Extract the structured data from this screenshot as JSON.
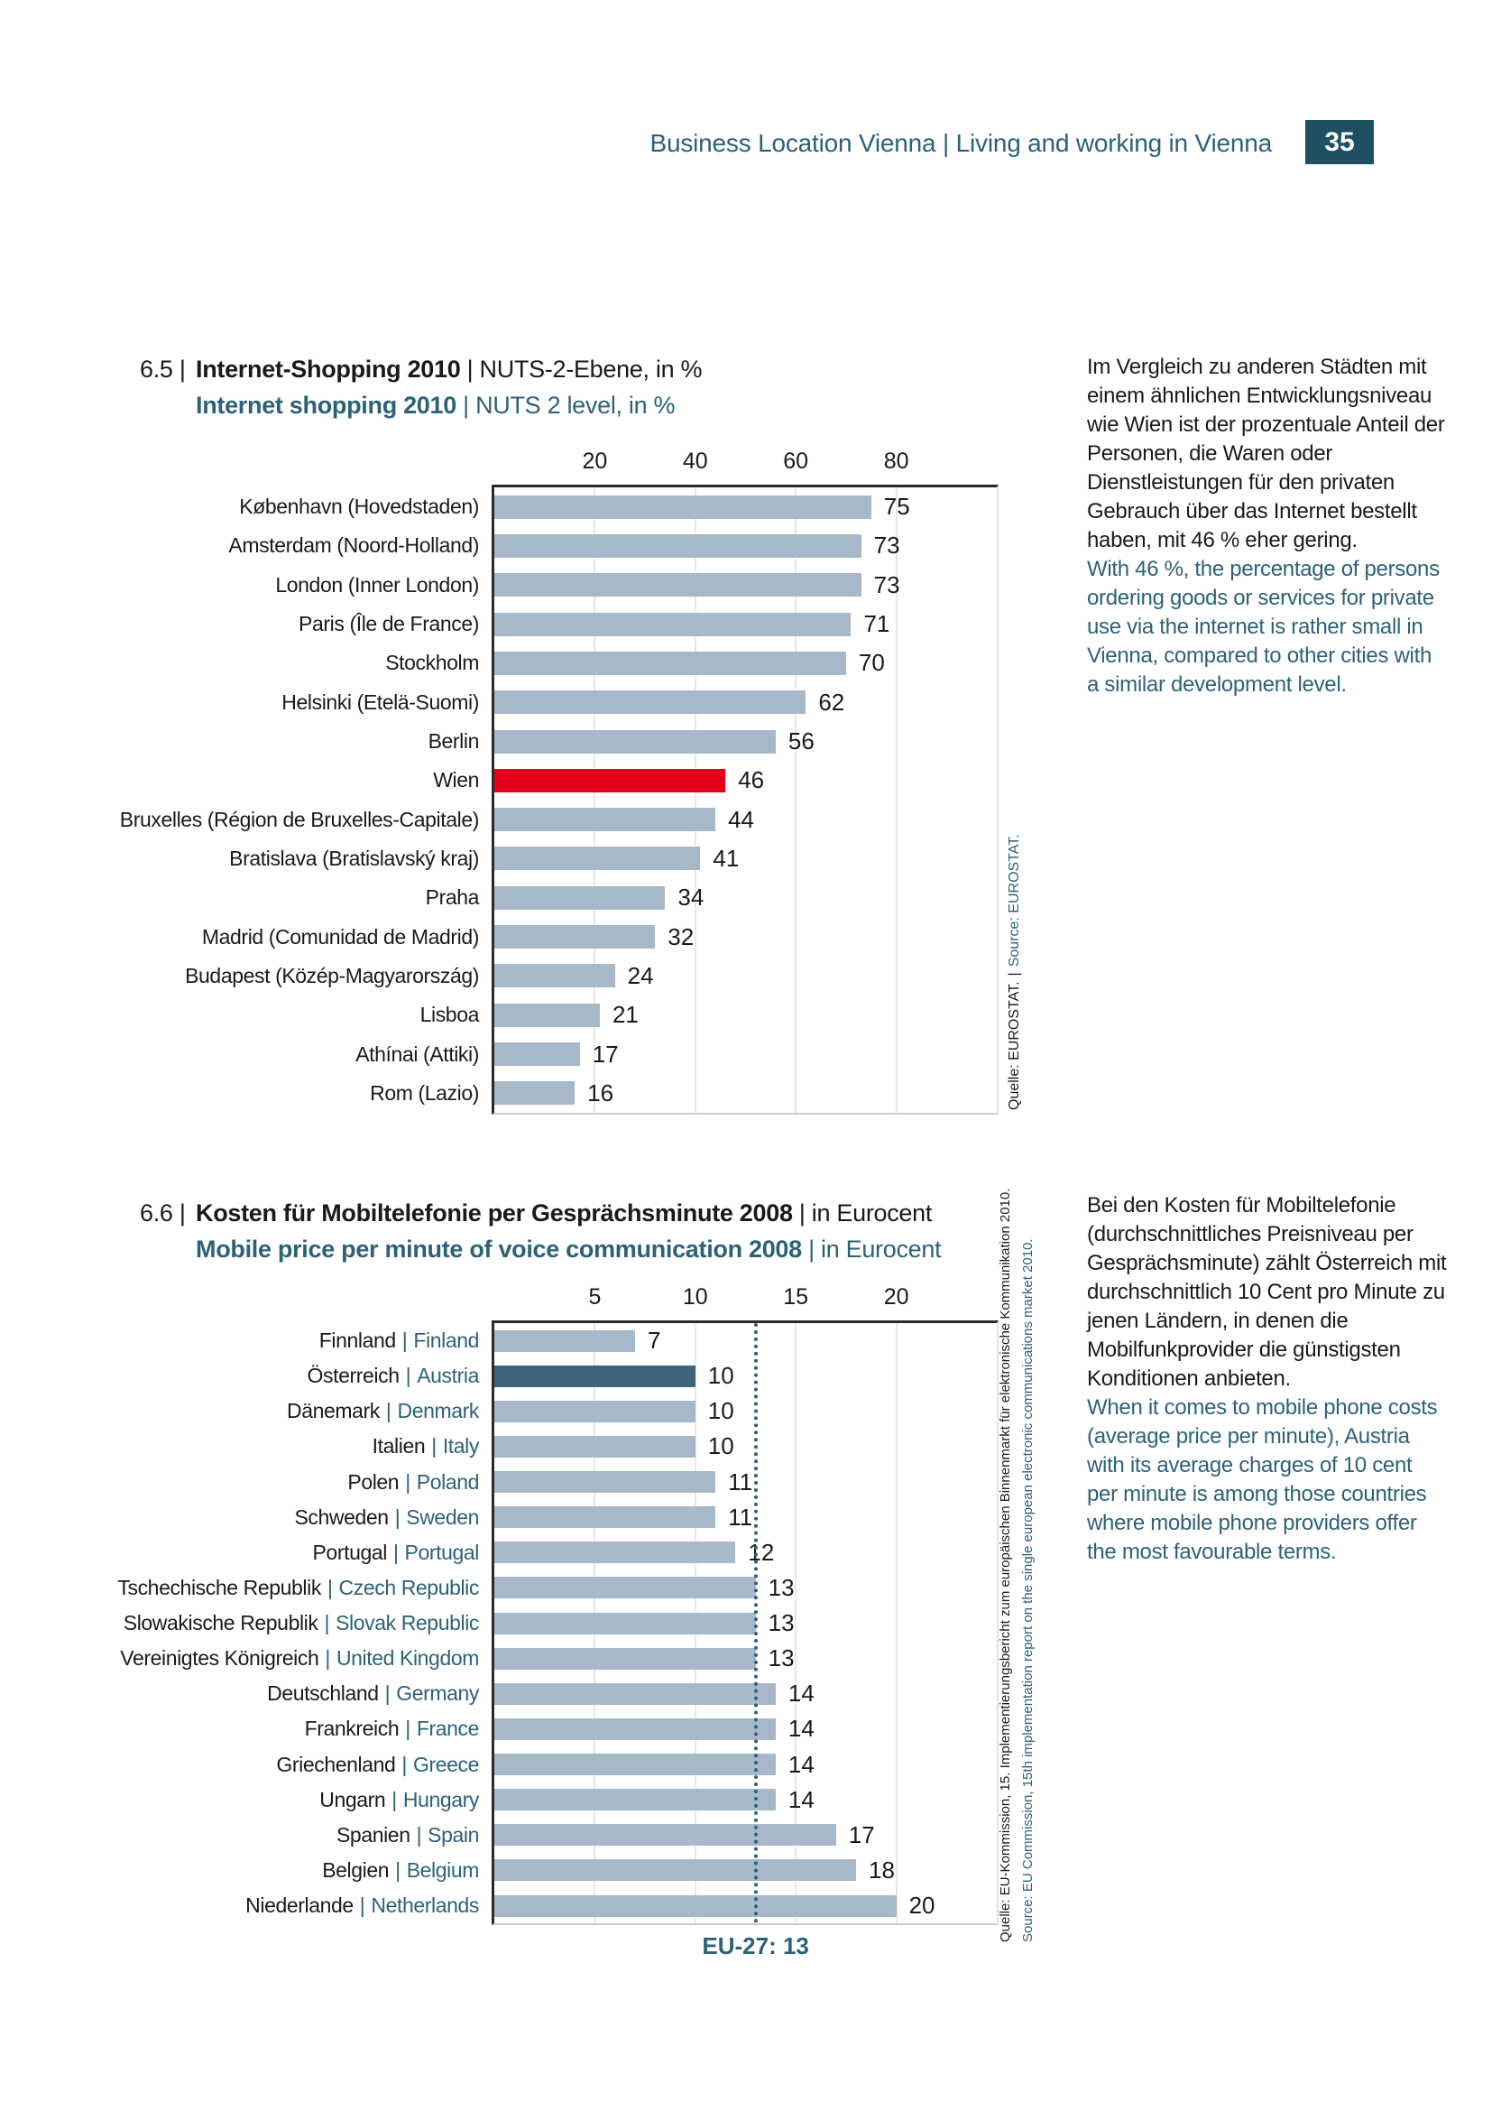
{
  "sep": "|",
  "header": {
    "title": "Business Location Vienna | Living and working in Vienna",
    "page_number": "35"
  },
  "colors": {
    "teal_text": "#2c6277",
    "teal_dark_box": "#1f4f63",
    "bar_gray_blue": "#a7b8c8",
    "highlight_red": "#e2001a",
    "highlight_dark_teal": "#3e6577",
    "text_black": "#1a1a1a",
    "gridline": "#e8e8e8",
    "axis_dark": "#2b2b2b",
    "border_light": "#cccccc",
    "refline_teal": "#2d607a"
  },
  "chart_data": [
    {
      "type": "bar",
      "orientation": "horizontal",
      "number_label": "6.5 |",
      "title_de_bold": "Internet-Shopping 2010",
      "title_de_rest": " | NUTS-2-Ebene, in %",
      "title_en_bold": "Internet shopping 2010",
      "title_en_rest": " | NUTS 2 level, in %",
      "xlim": [
        0,
        100
      ],
      "ticks": [
        20,
        40,
        60,
        80
      ],
      "grid": true,
      "categories": [
        "København (Hovedstaden)",
        "Amsterdam (Noord-Holland)",
        "London (Inner London)",
        "Paris (Île de France)",
        "Stockholm",
        "Helsinki (Etelä-Suomi)",
        "Berlin",
        "Wien",
        "Bruxelles (Région de Bruxelles-Capitale)",
        "Bratislava (Bratislavský kraj)",
        "Praha",
        "Madrid (Comunidad de Madrid)",
        "Budapest (Közép-Magyarország)",
        "Lisboa",
        "Athínai (Attiki)",
        "Rom (Lazio)"
      ],
      "values": [
        75,
        73,
        73,
        71,
        70,
        62,
        56,
        46,
        44,
        41,
        34,
        32,
        24,
        21,
        17,
        16
      ],
      "highlight_index": 7,
      "source_de": "Quelle: EUROSTAT.",
      "source_en": "Source: EUROSTAT.",
      "commentary_de": "Im Vergleich zu anderen Städten mit einem ähnlichen Entwicklungsniveau wie Wien ist der prozentuale Anteil der Personen, die Waren oder Dienstleistungen für den privaten Gebrauch über das Internet bestellt haben, mit 46 % eher gering.",
      "commentary_en": "With 46 %, the percentage of persons ordering goods or services for private use via the internet is rather small in Vienna, compared to other cities with a similar development level."
    },
    {
      "type": "bar",
      "orientation": "horizontal",
      "number_label": "6.6 |",
      "title_de_bold": "Kosten für Mobiltelefonie per Gesprächsminute 2008",
      "title_de_rest": " | in Eurocent",
      "title_en_bold": "Mobile price per minute of voice communication 2008",
      "title_en_rest": " | in Eurocent",
      "xlim": [
        0,
        25
      ],
      "ticks": [
        5,
        10,
        15,
        20
      ],
      "grid": true,
      "categories_de": [
        "Finnland",
        "Österreich",
        "Dänemark",
        "Italien",
        "Polen",
        "Schweden",
        "Portugal",
        "Tschechische Republik",
        "Slowakische Republik",
        "Vereinigtes Königreich",
        "Deutschland",
        "Frankreich",
        "Griechenland",
        "Ungarn",
        "Spanien",
        "Belgien",
        "Niederlande"
      ],
      "categories_en": [
        "Finland",
        "Austria",
        "Denmark",
        "Italy",
        "Poland",
        "Sweden",
        "Portugal",
        "Czech Republic",
        "Slovak Republic",
        "United Kingdom",
        "Germany",
        "France",
        "Greece",
        "Hungary",
        "Spain",
        "Belgium",
        "Netherlands"
      ],
      "values": [
        7,
        10,
        10,
        10,
        11,
        11,
        12,
        13,
        13,
        13,
        14,
        14,
        14,
        14,
        17,
        18,
        20
      ],
      "highlight_index": 1,
      "reference_line": {
        "value": 13,
        "label": "EU-27: 13"
      },
      "source_de": "Quelle: EU-Kommission, 15. Implementierungsbericht zum europäischen Binnenmarkt für elektronische Kommunikation 2010.",
      "source_en": "Source: EU Commission, 15th implementation report on the single european electronic communications market 2010.",
      "commentary_de": "Bei den Kosten für Mobiltelefonie (durchschnittliches Preisniveau per Gesprächsminute) zählt Österreich mit durchschnittlich 10 Cent pro Minute zu jenen Ländern, in denen die Mobilfunkprovider die günstigsten Konditionen anbieten.",
      "commentary_en": "When it comes to mobile phone costs (average price per minute), Austria with its average charges of 10 cent per minute is among those countries where mobile phone providers offer the most favourable terms."
    }
  ]
}
